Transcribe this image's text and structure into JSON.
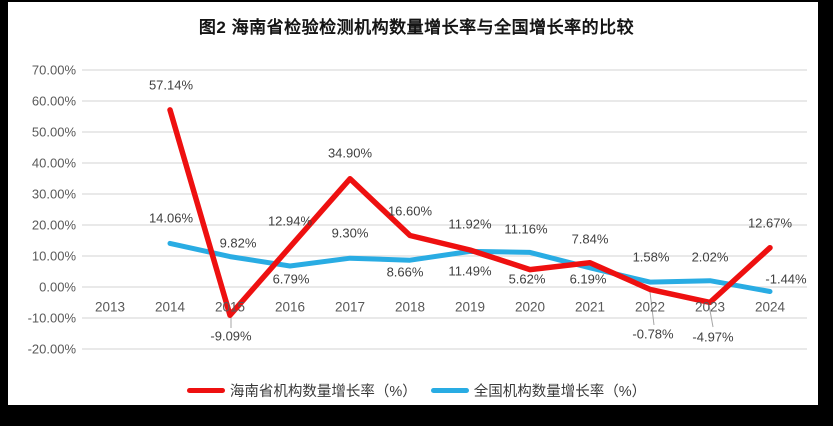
{
  "title": "图2 海南省检验检测机构数量增长率与全国增长率的比较",
  "colors": {
    "hainan": "#ee1010",
    "national": "#29ace3",
    "grid": "#dcdcdc",
    "leader": "#a6a6a6",
    "axis_text": "#595959",
    "label_text": "#404040"
  },
  "y_axis": {
    "ticks": [
      "70.00%",
      "60.00%",
      "50.00%",
      "40.00%",
      "30.00%",
      "20.00%",
      "10.00%",
      "0.00%",
      "-10.00%",
      "-20.00%"
    ]
  },
  "x_axis": {
    "ticks": [
      "2013",
      "2014",
      "2015",
      "2016",
      "2017",
      "2018",
      "2019",
      "2020",
      "2021",
      "2022",
      "2023",
      "2024"
    ]
  },
  "labels": {
    "hainan": [
      "57.14%",
      "-9.09%",
      "12.94%",
      "34.90%",
      "16.60%",
      "11.92%",
      "5.62%",
      "7.84%",
      "-0.78%",
      "-4.97%",
      "12.67%"
    ],
    "national": [
      "14.06%",
      "9.82%",
      "6.79%",
      "9.30%",
      "8.66%",
      "11.49%",
      "11.16%",
      "6.19%",
      "1.58%",
      "2.02%",
      "-1.44%"
    ]
  },
  "legend": {
    "hainan": "海南省机构数量增长率（%）",
    "national": "全国机构数量增长率（%）"
  },
  "chart_data": {
    "type": "line",
    "title": "图2 海南省检验检测机构数量增长率与全国增长率的比较",
    "categories": [
      "2013",
      "2014",
      "2015",
      "2016",
      "2017",
      "2018",
      "2019",
      "2020",
      "2021",
      "2022",
      "2023",
      "2024"
    ],
    "series": [
      {
        "name": "海南省机构数量增长率（%）",
        "color": "#ee1010",
        "values": [
          null,
          57.14,
          -9.09,
          12.94,
          34.9,
          16.6,
          11.92,
          5.62,
          7.84,
          -0.78,
          -4.97,
          12.67
        ]
      },
      {
        "name": "全国机构数量增长率（%）",
        "color": "#29ace3",
        "values": [
          null,
          14.06,
          9.82,
          6.79,
          9.3,
          8.66,
          11.49,
          11.16,
          6.19,
          1.58,
          2.02,
          -1.44
        ]
      }
    ],
    "ylim": [
      -20,
      70
    ],
    "y_tick_step": 10,
    "xlabel": "",
    "ylabel": "",
    "grid": true,
    "legend_position": "bottom"
  }
}
